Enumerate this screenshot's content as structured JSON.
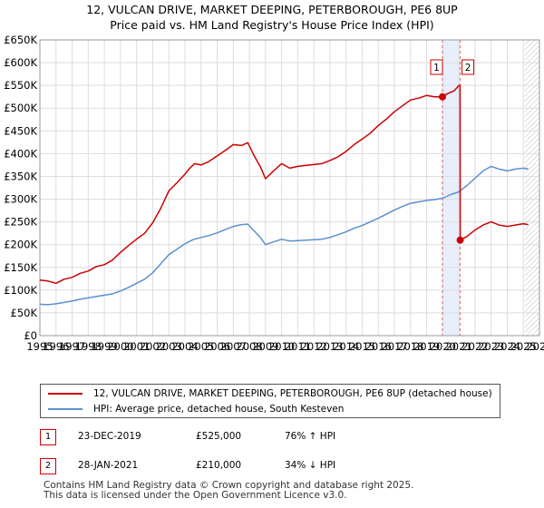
{
  "chart_data": {
    "type": "line",
    "title": "12, VULCAN DRIVE, MARKET DEEPING, PETERBOROUGH, PE6 8UP",
    "subtitle": "Price paid vs. HM Land Registry's House Price Index (HPI)",
    "xlim": [
      1995,
      2026
    ],
    "ylim": [
      0,
      650000
    ],
    "y_ticks": [
      {
        "v": 0,
        "label": "£0"
      },
      {
        "v": 50000,
        "label": "£50K"
      },
      {
        "v": 100000,
        "label": "£100K"
      },
      {
        "v": 150000,
        "label": "£150K"
      },
      {
        "v": 200000,
        "label": "£200K"
      },
      {
        "v": 250000,
        "label": "£250K"
      },
      {
        "v": 300000,
        "label": "£300K"
      },
      {
        "v": 350000,
        "label": "£350K"
      },
      {
        "v": 400000,
        "label": "£400K"
      },
      {
        "v": 450000,
        "label": "£450K"
      },
      {
        "v": 500000,
        "label": "£500K"
      },
      {
        "v": 550000,
        "label": "£550K"
      },
      {
        "v": 600000,
        "label": "£600K"
      },
      {
        "v": 650000,
        "label": "£650K"
      }
    ],
    "x_ticks": [
      "1995",
      "1996",
      "1997",
      "1998",
      "1999",
      "2000",
      "2001",
      "2002",
      "2003",
      "2004",
      "2005",
      "2006",
      "2007",
      "2008",
      "2009",
      "2010",
      "2011",
      "2012",
      "2013",
      "2014",
      "2015",
      "2016",
      "2017",
      "2018",
      "2019",
      "2020",
      "2021",
      "2022",
      "2023",
      "2024",
      "2025",
      "2026"
    ],
    "grid": true,
    "series": [
      {
        "name": "12, VULCAN DRIVE, MARKET DEEPING, PETERBOROUGH, PE6 8UP (detached house)",
        "color": "#cc0000",
        "points": [
          [
            1995,
            122000
          ],
          [
            1995.5,
            120000
          ],
          [
            1996,
            115000
          ],
          [
            1996.5,
            124000
          ],
          [
            1997,
            128000
          ],
          [
            1997.5,
            137000
          ],
          [
            1998,
            142000
          ],
          [
            1998.5,
            152000
          ],
          [
            1999,
            156000
          ],
          [
            1999.5,
            166000
          ],
          [
            2000,
            183000
          ],
          [
            2000.5,
            198000
          ],
          [
            2001,
            212000
          ],
          [
            2001.5,
            225000
          ],
          [
            2002,
            248000
          ],
          [
            2002.5,
            280000
          ],
          [
            2003,
            318000
          ],
          [
            2003.5,
            336000
          ],
          [
            2004,
            355000
          ],
          [
            2004.3,
            368000
          ],
          [
            2004.6,
            378000
          ],
          [
            2005,
            375000
          ],
          [
            2005.5,
            383000
          ],
          [
            2006,
            395000
          ],
          [
            2006.5,
            407000
          ],
          [
            2007,
            420000
          ],
          [
            2007.5,
            418000
          ],
          [
            2007.9,
            424000
          ],
          [
            2008.3,
            395000
          ],
          [
            2008.7,
            370000
          ],
          [
            2009,
            345000
          ],
          [
            2009.5,
            362000
          ],
          [
            2010,
            378000
          ],
          [
            2010.5,
            368000
          ],
          [
            2011,
            372000
          ],
          [
            2011.5,
            374000
          ],
          [
            2012,
            376000
          ],
          [
            2012.5,
            378000
          ],
          [
            2013,
            385000
          ],
          [
            2013.5,
            393000
          ],
          [
            2014,
            405000
          ],
          [
            2014.5,
            420000
          ],
          [
            2015,
            432000
          ],
          [
            2015.5,
            445000
          ],
          [
            2016,
            462000
          ],
          [
            2016.5,
            476000
          ],
          [
            2017,
            492000
          ],
          [
            2017.5,
            505000
          ],
          [
            2018,
            518000
          ],
          [
            2018.5,
            522000
          ],
          [
            2019,
            528000
          ],
          [
            2019.5,
            525000
          ],
          [
            2019.98,
            525000
          ],
          [
            2020.3,
            532000
          ],
          [
            2020.7,
            538000
          ],
          [
            2021.0,
            550000
          ],
          [
            2021.07,
            550000
          ],
          [
            2021.08,
            210000
          ],
          [
            2021.5,
            218000
          ],
          [
            2022,
            232000
          ],
          [
            2022.5,
            243000
          ],
          [
            2023,
            250000
          ],
          [
            2023.5,
            243000
          ],
          [
            2024,
            240000
          ],
          [
            2024.5,
            243000
          ],
          [
            2025,
            246000
          ],
          [
            2025.3,
            244000
          ]
        ]
      },
      {
        "name": "HPI: Average price, detached house, South Kesteven",
        "color": "#5b8fcf",
        "points": [
          [
            1995,
            69000
          ],
          [
            1995.5,
            68000
          ],
          [
            1996,
            70000
          ],
          [
            1996.5,
            73000
          ],
          [
            1997,
            76000
          ],
          [
            1997.5,
            80000
          ],
          [
            1998,
            83000
          ],
          [
            1998.5,
            86000
          ],
          [
            1999,
            89000
          ],
          [
            1999.5,
            92000
          ],
          [
            2000,
            98000
          ],
          [
            2000.5,
            106000
          ],
          [
            2001,
            115000
          ],
          [
            2001.5,
            124000
          ],
          [
            2002,
            138000
          ],
          [
            2002.5,
            158000
          ],
          [
            2003,
            178000
          ],
          [
            2003.5,
            190000
          ],
          [
            2004,
            202000
          ],
          [
            2004.5,
            211000
          ],
          [
            2005,
            216000
          ],
          [
            2005.5,
            220000
          ],
          [
            2006,
            226000
          ],
          [
            2006.5,
            233000
          ],
          [
            2007,
            240000
          ],
          [
            2007.5,
            244000
          ],
          [
            2007.9,
            245000
          ],
          [
            2008.3,
            230000
          ],
          [
            2008.7,
            215000
          ],
          [
            2009,
            200000
          ],
          [
            2009.5,
            206000
          ],
          [
            2010,
            212000
          ],
          [
            2010.5,
            208000
          ],
          [
            2011,
            209000
          ],
          [
            2011.5,
            210000
          ],
          [
            2012,
            211000
          ],
          [
            2012.5,
            212000
          ],
          [
            2013,
            216000
          ],
          [
            2013.5,
            222000
          ],
          [
            2014,
            228000
          ],
          [
            2014.5,
            236000
          ],
          [
            2015,
            242000
          ],
          [
            2015.5,
            250000
          ],
          [
            2016,
            258000
          ],
          [
            2016.5,
            267000
          ],
          [
            2017,
            276000
          ],
          [
            2017.5,
            284000
          ],
          [
            2018,
            291000
          ],
          [
            2018.5,
            294000
          ],
          [
            2019,
            297000
          ],
          [
            2019.5,
            299000
          ],
          [
            2020,
            302000
          ],
          [
            2020.5,
            310000
          ],
          [
            2021,
            316000
          ],
          [
            2021.5,
            330000
          ],
          [
            2022,
            346000
          ],
          [
            2022.5,
            362000
          ],
          [
            2023,
            372000
          ],
          [
            2023.5,
            366000
          ],
          [
            2024,
            362000
          ],
          [
            2024.5,
            366000
          ],
          [
            2025,
            368000
          ],
          [
            2025.3,
            366000
          ]
        ]
      }
    ],
    "sales": [
      {
        "id": "1",
        "x": 2019.98,
        "price": 525000,
        "date": "23-DEC-2019",
        "price_label": "£525,000",
        "hpi": "76% ↑ HPI"
      },
      {
        "id": "2",
        "x": 2021.08,
        "price": 210000,
        "date": "28-JAN-2021",
        "price_label": "£210,000",
        "hpi": "34% ↓ HPI"
      }
    ],
    "forecast_from": 2025.08
  },
  "footer": {
    "line1": "Contains HM Land Registry data © Crown copyright and database right 2025.",
    "line2": "This data is licensed under the Open Government Licence v3.0."
  }
}
